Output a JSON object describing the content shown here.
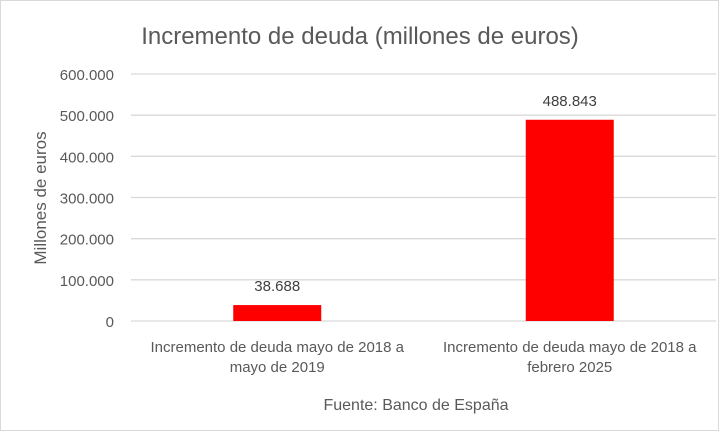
{
  "chart_data": {
    "type": "bar",
    "title": "Incremento de deuda (millones de euros)",
    "ylabel": "Millones de euros",
    "xlabel": "Fuente: Banco de España",
    "categories": [
      [
        "Incremento de deuda mayo de 2018 a",
        "mayo de 2019"
      ],
      [
        "Incremento de deuda mayo de 2018 a",
        "febrero 2025"
      ]
    ],
    "values": [
      38688,
      488843
    ],
    "data_labels": [
      "38.688",
      "488.843"
    ],
    "ylim": [
      0,
      600000
    ],
    "yticks": [
      0,
      100000,
      200000,
      300000,
      400000,
      500000,
      600000
    ],
    "ytick_labels": [
      "0",
      "100.000",
      "200.000",
      "300.000",
      "400.000",
      "500.000",
      "600.000"
    ],
    "grid": true,
    "legend": "none",
    "bar_color": "#ff0000"
  }
}
